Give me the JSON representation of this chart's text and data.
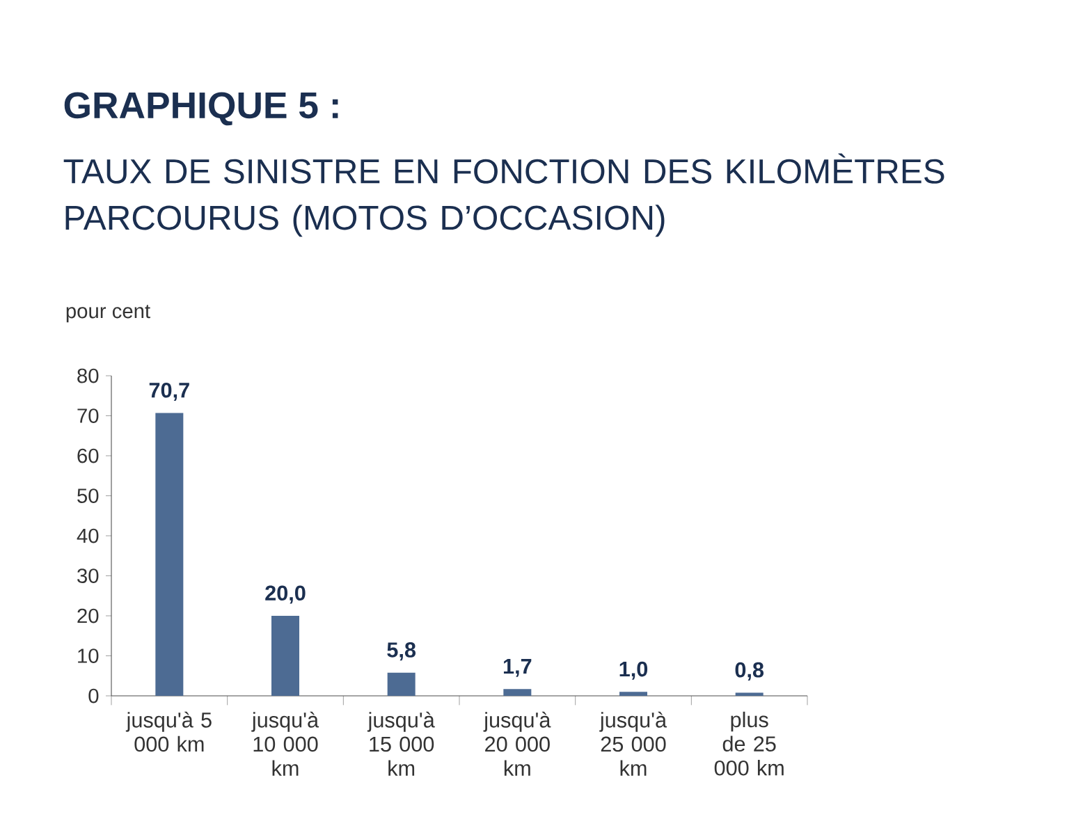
{
  "chart_data": {
    "type": "bar",
    "title": "GRAPHIQUE 5 :",
    "subtitle": "TAUX DE SINISTRE EN FONCTION DES KILOMÈTRES PARCOURUS (MOTOS D’OCCASION)",
    "ylabel": "pour cent",
    "categories": [
      "jusqu'à 5 000 km",
      "jusqu'à 10 000 km",
      "jusqu'à 15 000 km",
      "jusqu'à 20 000 km",
      "jusqu'à 25 000 km",
      "plus de 25 000 km"
    ],
    "values": [
      70.7,
      20.0,
      5.8,
      1.7,
      1.0,
      0.8
    ],
    "value_labels": [
      "70,7",
      "20,0",
      "5,8",
      "1,7",
      "1,0",
      "0,8"
    ],
    "color": "#4d6b93",
    "ylim": [
      0,
      80
    ],
    "yticks": [
      0,
      10,
      20,
      30,
      40,
      50,
      60,
      70,
      80
    ]
  }
}
